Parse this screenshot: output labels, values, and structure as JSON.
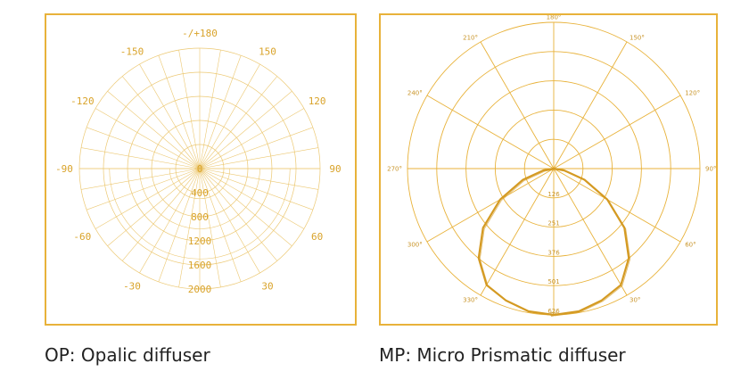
{
  "colors": {
    "accent": "#e8b23a",
    "grid": "#ecc872",
    "curve": "#d49a22",
    "text": "#222222"
  },
  "captions": {
    "op": "OP: Opalic diffuser",
    "mp": "MP: Micro Prismatic diffuser"
  },
  "chart_data": [
    {
      "type": "polar",
      "title": "",
      "angle_labels": [
        {
          "text": "-/+180",
          "angle": 180
        },
        {
          "text": "150",
          "angle": 150
        },
        {
          "text": "-150",
          "angle": -150
        },
        {
          "text": "120",
          "angle": 120
        },
        {
          "text": "-120",
          "angle": -120
        },
        {
          "text": "90",
          "angle": 90
        },
        {
          "text": "-90",
          "angle": -90
        },
        {
          "text": "60",
          "angle": 60
        },
        {
          "text": "-60",
          "angle": -60
        },
        {
          "text": "30",
          "angle": 30
        },
        {
          "text": "-30",
          "angle": -30
        }
      ],
      "radial_ticks": [
        "0",
        "400",
        "800",
        "1200",
        "1600",
        "2000"
      ],
      "radial_range": [
        0,
        2000
      ],
      "series": []
    },
    {
      "type": "polar",
      "title": "",
      "angle_labels": [
        {
          "text": "180°",
          "angle": 180
        },
        {
          "text": "150°",
          "angle": 150
        },
        {
          "text": "210°",
          "angle": 210
        },
        {
          "text": "120°",
          "angle": 120
        },
        {
          "text": "240°",
          "angle": 240
        },
        {
          "text": "90°",
          "angle": 90
        },
        {
          "text": "270°",
          "angle": 270
        },
        {
          "text": "60°",
          "angle": 60
        },
        {
          "text": "300°",
          "angle": 300
        },
        {
          "text": "30°",
          "angle": 30
        },
        {
          "text": "330°",
          "angle": 330
        },
        {
          "text": "0°",
          "angle": 0
        }
      ],
      "radial_ticks": [
        "126",
        "251",
        "376",
        "501",
        "626"
      ],
      "radial_range": [
        0,
        626
      ],
      "series": [
        {
          "angles": [
            0,
            10,
            20,
            30,
            40,
            50,
            60,
            70,
            80,
            90
          ],
          "values": [
            626,
            620,
            600,
            575,
            500,
            395,
            265,
            140,
            45,
            0
          ]
        }
      ]
    }
  ]
}
